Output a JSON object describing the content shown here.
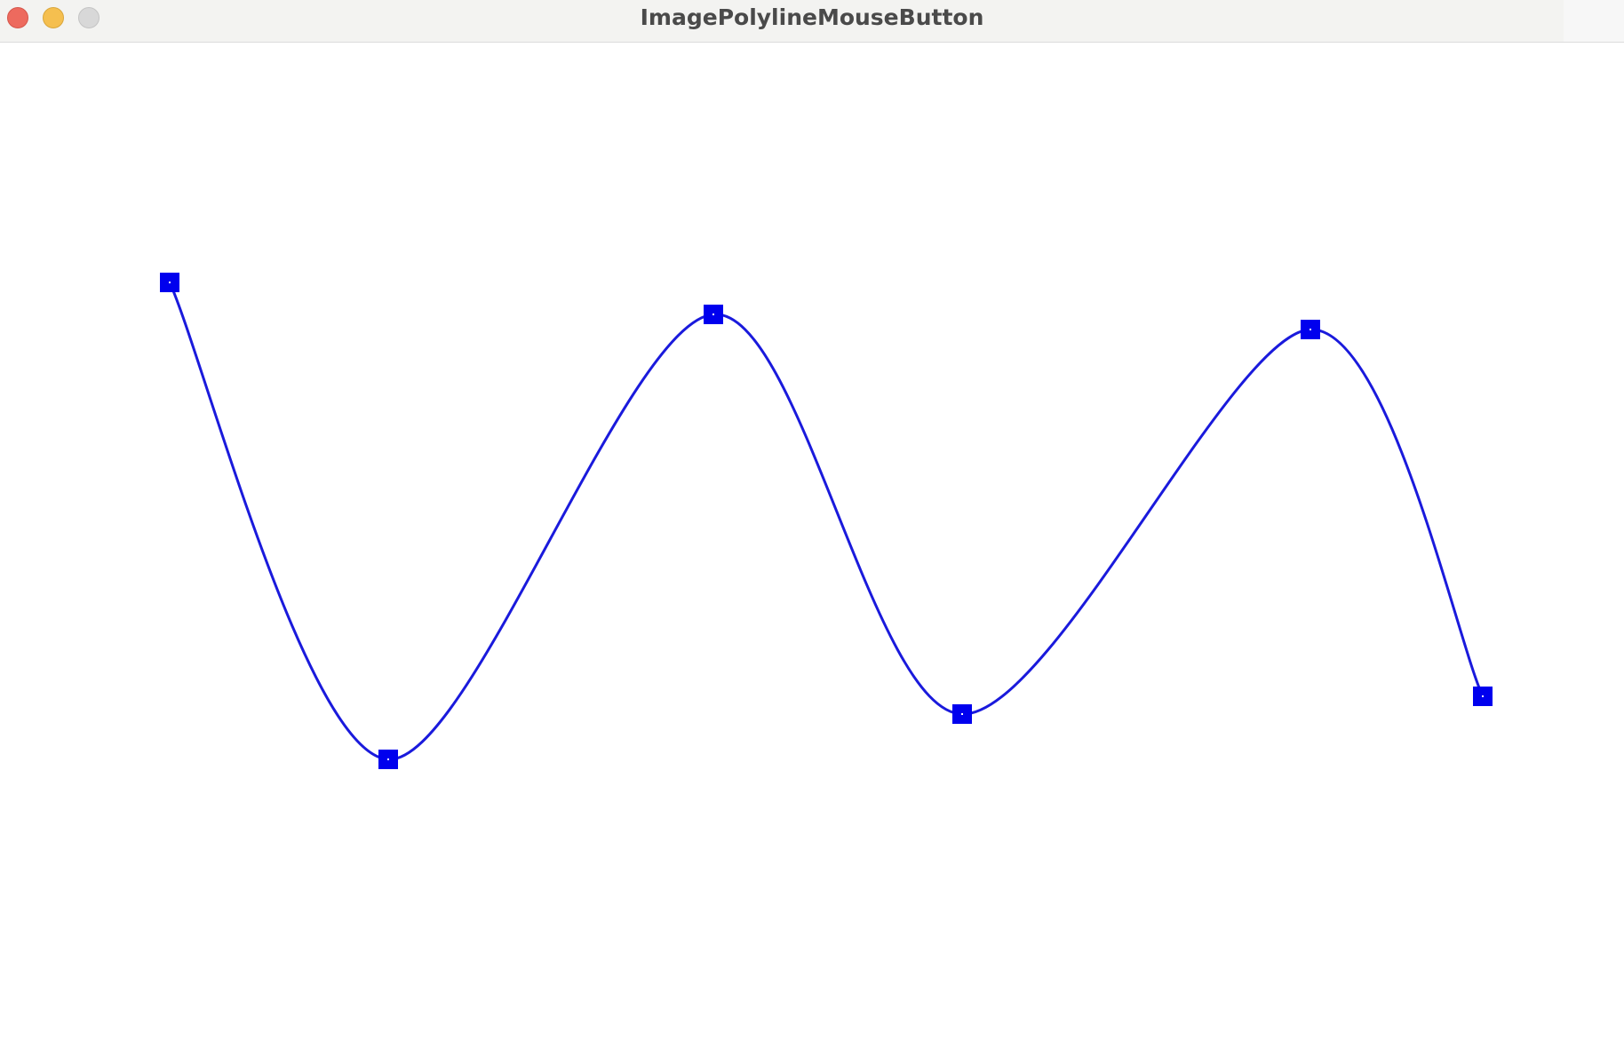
{
  "window": {
    "title": "ImagePolylineMouseButton"
  },
  "titlebar_buttons": {
    "close": {
      "icon": "close-icon",
      "color": "#ed6a5e"
    },
    "minimize": {
      "icon": "minimize-icon",
      "color": "#f5bf4f"
    },
    "maximize": {
      "icon": "maximize-icon",
      "color": "#d8d8d8"
    }
  },
  "polyline": {
    "stroke_color": "#1a1adc",
    "handle_color": "#0000ee",
    "control_points": [
      {
        "name": "control-point-1"
      },
      {
        "name": "control-point-2"
      },
      {
        "name": "control-point-3"
      },
      {
        "name": "control-point-4"
      },
      {
        "name": "control-point-5"
      },
      {
        "name": "control-point-6"
      }
    ]
  }
}
